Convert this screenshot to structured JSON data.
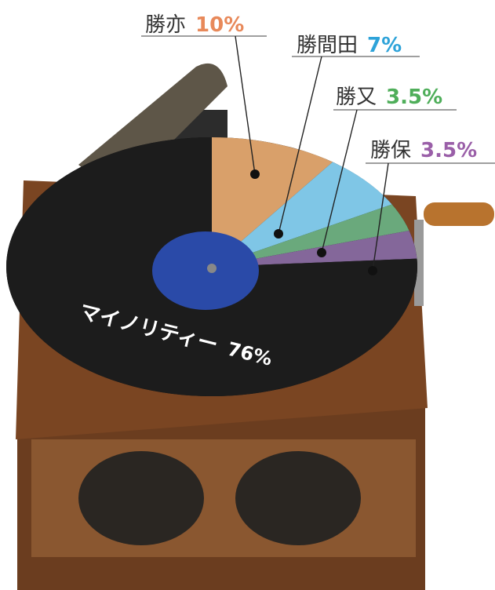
{
  "chart_data": {
    "type": "pie",
    "categories": [
      "勝亦",
      "勝間田",
      "勝又",
      "勝保",
      "マイノリティー"
    ],
    "values": [
      10,
      7,
      3.5,
      3.5,
      76
    ],
    "value_labels": [
      "10%",
      "7%",
      "3.5%",
      "3.5%",
      "76%"
    ],
    "colors": [
      "#d9a06a",
      "#7fc6e6",
      "#6aa97c",
      "#84679a",
      "#1c1c1c"
    ],
    "label_colors": [
      "#e8895a",
      "#2ea3d9",
      "#4fae5a",
      "#9a5fa8",
      "#ffffff"
    ]
  }
}
